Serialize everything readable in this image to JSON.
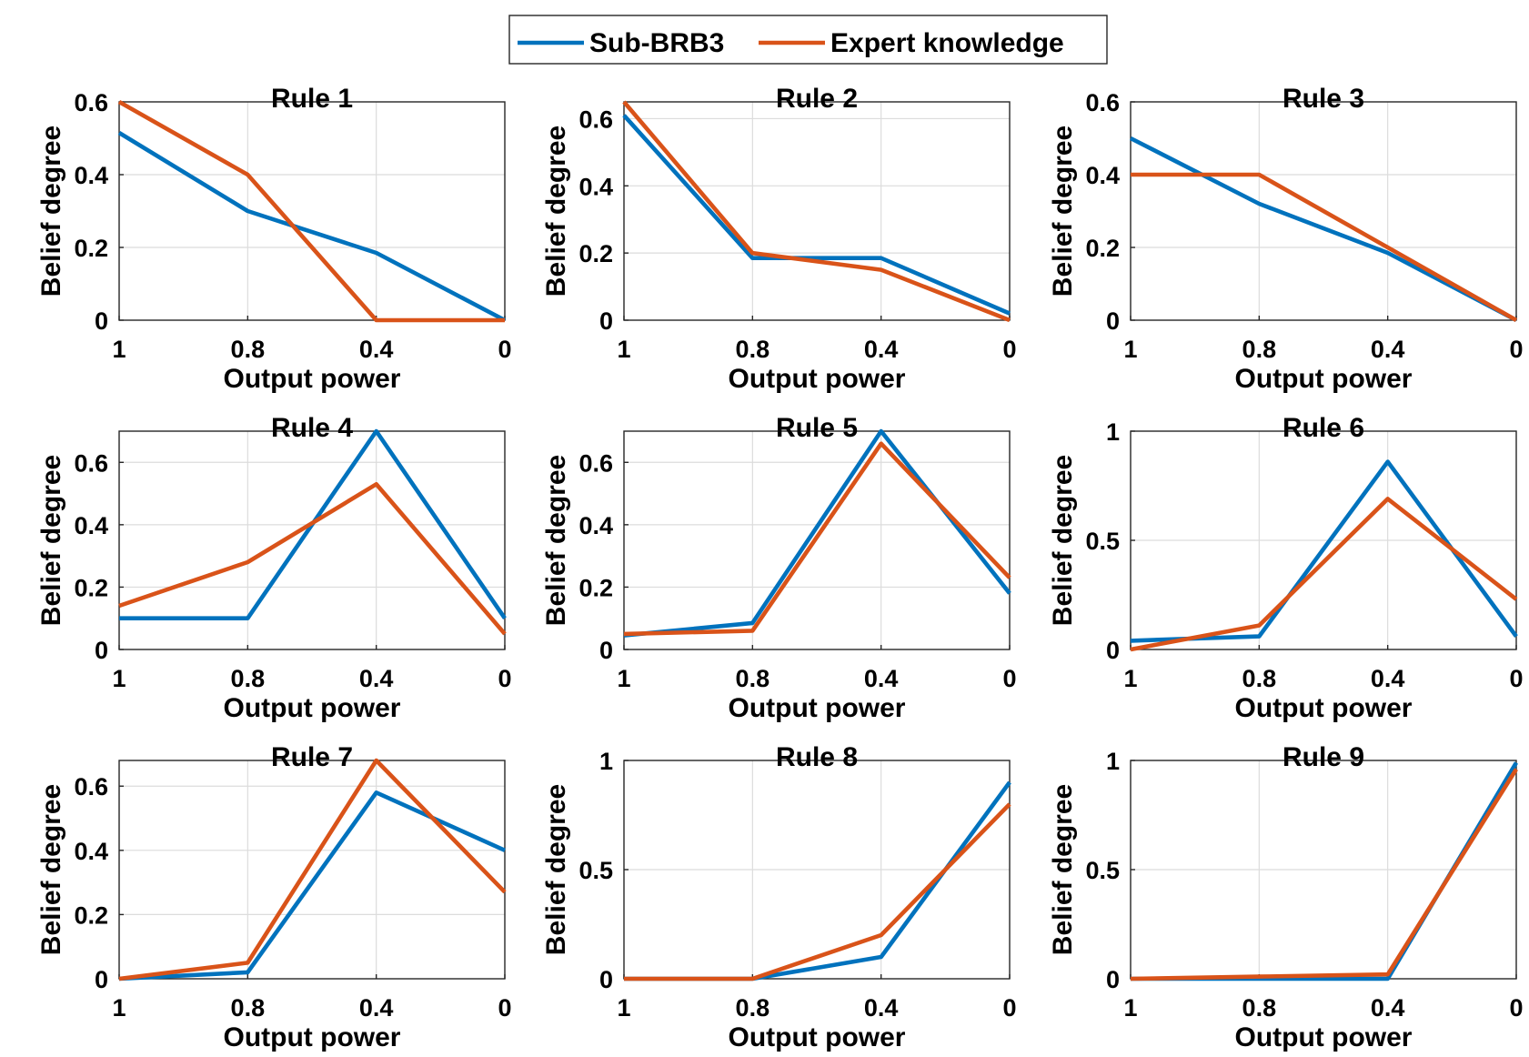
{
  "colors": {
    "sub_brb3": "#0072BD",
    "expert": "#D95319"
  },
  "chart_data": {
    "type": "line",
    "legend": {
      "position": "top-center",
      "entries": [
        "Sub-BRB3",
        "Expert knowledge"
      ]
    },
    "x_tick_labels": [
      "1",
      "0.8",
      "0.4",
      "0"
    ],
    "xlabel": "Output power",
    "ylabel": "Belief degree",
    "grid": true,
    "subplots": [
      {
        "title": "Rule 1",
        "ylim": [
          0,
          0.6
        ],
        "yticks": [
          0,
          0.2,
          0.4,
          0.6
        ],
        "ytick_labels": [
          "0",
          "0.2",
          "0.4",
          "0.6"
        ],
        "series": [
          {
            "name": "Sub-BRB3",
            "values": [
              0.515,
              0.3,
              0.185,
              0.0
            ]
          },
          {
            "name": "Expert knowledge",
            "values": [
              0.6,
              0.4,
              0.0,
              0.0
            ]
          }
        ]
      },
      {
        "title": "Rule 2",
        "ylim": [
          0,
          0.65
        ],
        "yticks": [
          0,
          0.2,
          0.4,
          0.6
        ],
        "ytick_labels": [
          "0",
          "0.2",
          "0.4",
          "0.6"
        ],
        "series": [
          {
            "name": "Sub-BRB3",
            "values": [
              0.61,
              0.185,
              0.185,
              0.02
            ]
          },
          {
            "name": "Expert knowledge",
            "values": [
              0.65,
              0.2,
              0.15,
              0.0
            ]
          }
        ]
      },
      {
        "title": "Rule 3",
        "ylim": [
          0,
          0.6
        ],
        "yticks": [
          0,
          0.2,
          0.4,
          0.6
        ],
        "ytick_labels": [
          "0",
          "0.2",
          "0.4",
          "0.6"
        ],
        "series": [
          {
            "name": "Sub-BRB3",
            "values": [
              0.5,
              0.32,
              0.185,
              0.0
            ]
          },
          {
            "name": "Expert knowledge",
            "values": [
              0.4,
              0.4,
              0.2,
              0.0
            ]
          }
        ]
      },
      {
        "title": "Rule 4",
        "ylim": [
          0,
          0.7
        ],
        "yticks": [
          0,
          0.2,
          0.4,
          0.6
        ],
        "ytick_labels": [
          "0",
          "0.2",
          "0.4",
          "0.6"
        ],
        "series": [
          {
            "name": "Sub-BRB3",
            "values": [
              0.1,
              0.1,
              0.7,
              0.1
            ]
          },
          {
            "name": "Expert knowledge",
            "values": [
              0.14,
              0.28,
              0.53,
              0.05
            ]
          }
        ]
      },
      {
        "title": "Rule 5",
        "ylim": [
          0,
          0.7
        ],
        "yticks": [
          0,
          0.2,
          0.4,
          0.6
        ],
        "ytick_labels": [
          "0",
          "0.2",
          "0.4",
          "0.6"
        ],
        "series": [
          {
            "name": "Sub-BRB3",
            "values": [
              0.045,
              0.085,
              0.7,
              0.18
            ]
          },
          {
            "name": "Expert knowledge",
            "values": [
              0.05,
              0.06,
              0.66,
              0.23
            ]
          }
        ]
      },
      {
        "title": "Rule 6",
        "ylim": [
          0,
          1
        ],
        "yticks": [
          0,
          0.5,
          1
        ],
        "ytick_labels": [
          "0",
          "0.5",
          "1"
        ],
        "series": [
          {
            "name": "Sub-BRB3",
            "values": [
              0.04,
              0.06,
              0.86,
              0.06
            ]
          },
          {
            "name": "Expert knowledge",
            "values": [
              0.0,
              0.11,
              0.69,
              0.23
            ]
          }
        ]
      },
      {
        "title": "Rule 7",
        "ylim": [
          0,
          0.68
        ],
        "yticks": [
          0,
          0.2,
          0.4,
          0.6
        ],
        "ytick_labels": [
          "0",
          "0.2",
          "0.4",
          "0.6"
        ],
        "series": [
          {
            "name": "Sub-BRB3",
            "values": [
              0.0,
              0.02,
              0.58,
              0.4
            ]
          },
          {
            "name": "Expert knowledge",
            "values": [
              0.0,
              0.05,
              0.68,
              0.27
            ]
          }
        ]
      },
      {
        "title": "Rule 8",
        "ylim": [
          0,
          1
        ],
        "yticks": [
          0,
          0.5,
          1
        ],
        "ytick_labels": [
          "0",
          "0.5",
          "1"
        ],
        "series": [
          {
            "name": "Sub-BRB3",
            "values": [
              0.0,
              0.0,
              0.1,
              0.9
            ]
          },
          {
            "name": "Expert knowledge",
            "values": [
              0.0,
              0.0,
              0.2,
              0.8
            ]
          }
        ]
      },
      {
        "title": "Rule 9",
        "ylim": [
          0,
          1
        ],
        "yticks": [
          0,
          0.5,
          1
        ],
        "ytick_labels": [
          "0",
          "0.5",
          "1"
        ],
        "series": [
          {
            "name": "Sub-BRB3",
            "values": [
              0.0,
              0.0,
              0.0,
              0.99
            ]
          },
          {
            "name": "Expert knowledge",
            "values": [
              0.0,
              0.01,
              0.02,
              0.96
            ]
          }
        ]
      }
    ]
  }
}
